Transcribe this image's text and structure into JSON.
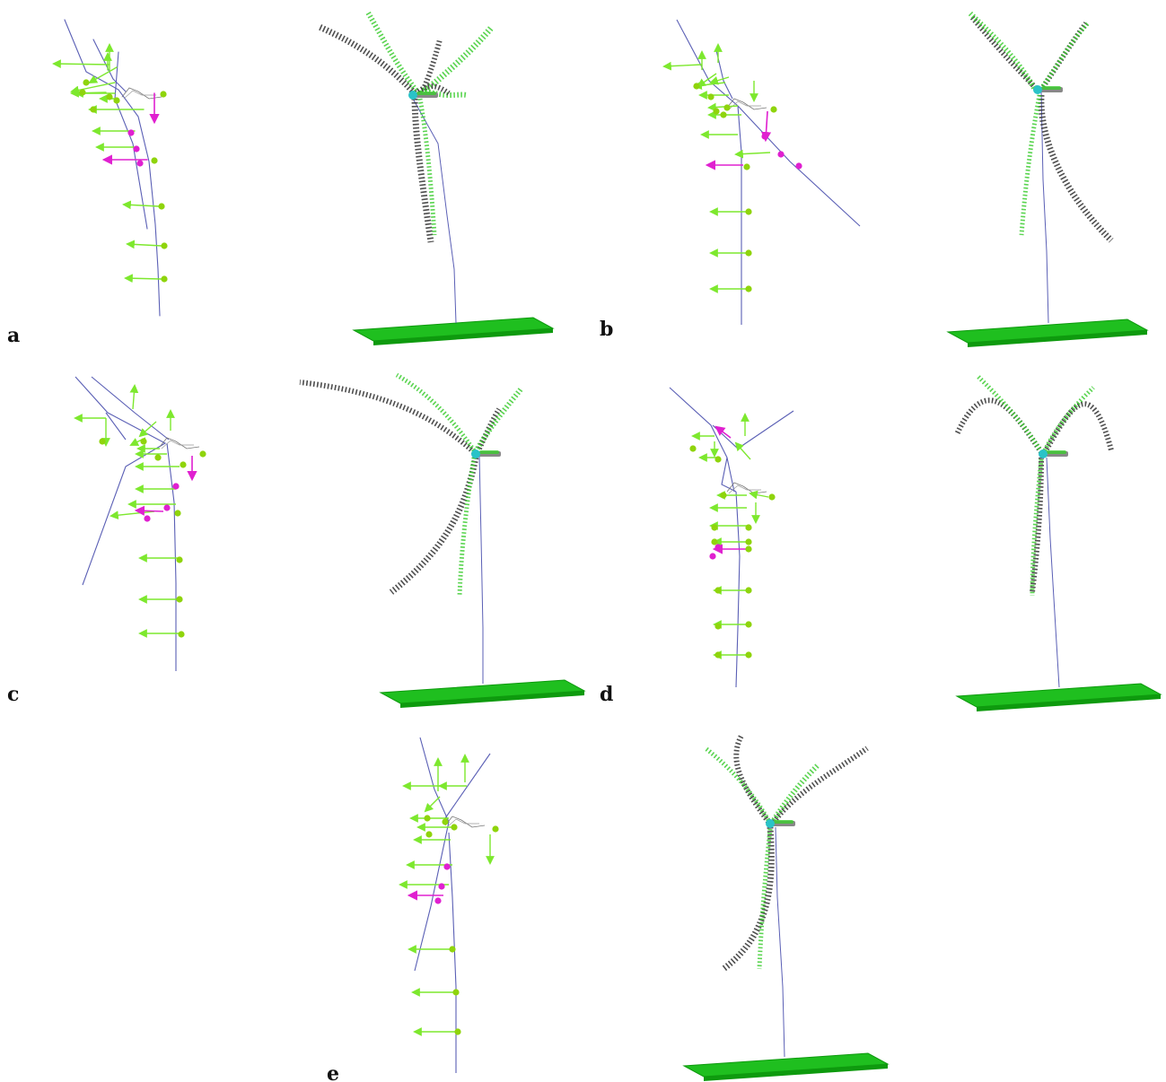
{
  "panel_labels": {
    "a": "a",
    "b": "b",
    "c": "c",
    "d": "d",
    "e": "e"
  },
  "colors": {
    "frame_line": "#5a5fb5",
    "force_arrow": "#7de82e",
    "marker_ball": "#8fd40c",
    "highlight": "#e020d0",
    "ground_plate": "#1fbf1f",
    "ground_plate_edge": "#0e9a0e",
    "blade_dark": "#3b3b3b",
    "blade_green": "#3ccc30",
    "hub": "#2ac3c8",
    "nacelle": "#888888"
  }
}
